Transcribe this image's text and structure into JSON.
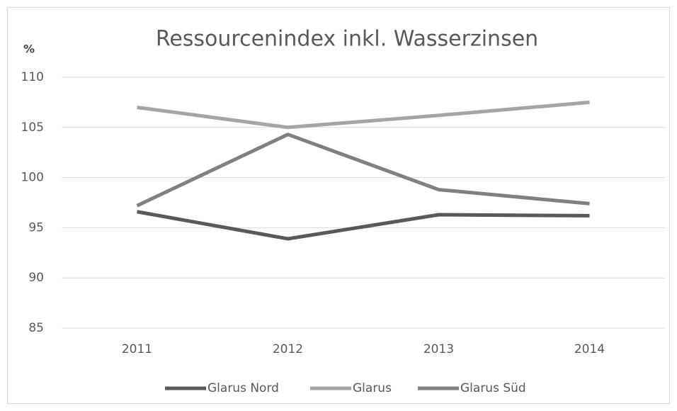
{
  "chart_data": {
    "type": "line",
    "title": "Ressourcenindex inkl. Wasserzinsen",
    "y_label": "%",
    "categories": [
      "2011",
      "2012",
      "2013",
      "2014"
    ],
    "series": [
      {
        "name": "Glarus Nord",
        "color": "#595959",
        "values": [
          96.6,
          93.9,
          96.3,
          96.2
        ]
      },
      {
        "name": "Glarus",
        "color": "#a5a5a5",
        "values": [
          107.0,
          105.0,
          106.2,
          107.5
        ]
      },
      {
        "name": "Glarus Süd",
        "color": "#808080",
        "values": [
          97.2,
          104.3,
          98.8,
          97.4
        ]
      }
    ],
    "ylim": [
      85,
      110
    ],
    "yticks": [
      85,
      90,
      95,
      100,
      105,
      110
    ],
    "grid": true,
    "legend": "bottom"
  }
}
